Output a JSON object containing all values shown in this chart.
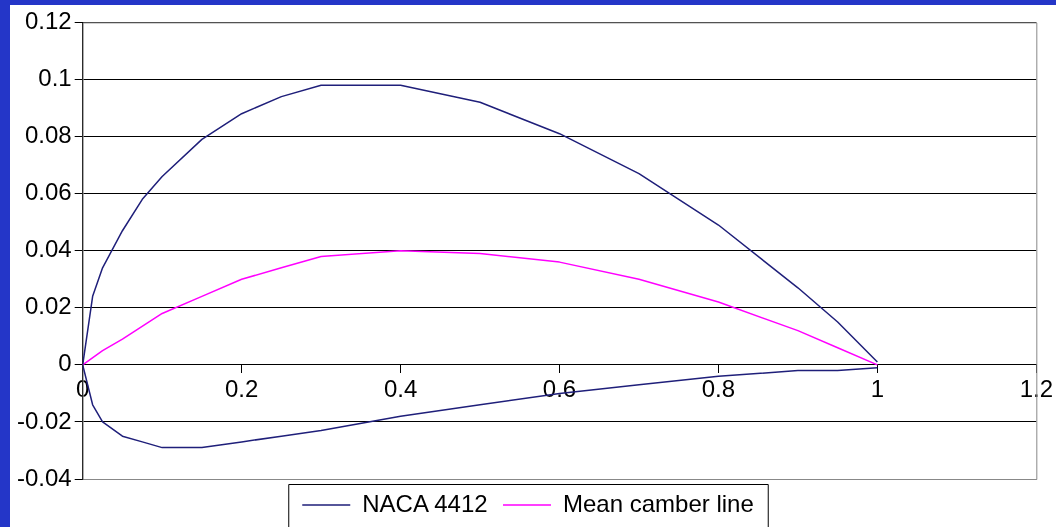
{
  "chart_data": {
    "type": "line",
    "marker": "none",
    "grid": "y",
    "legend": "bottom",
    "xlim": [
      0,
      1.2
    ],
    "xticks": [
      0,
      0.2,
      0.4,
      0.6,
      0.8,
      1,
      1.2
    ],
    "ylim": [
      -0.04,
      0.12
    ],
    "yticks": [
      -0.04,
      -0.02,
      0,
      0.02,
      0.04,
      0.06,
      0.08,
      0.1,
      0.12
    ],
    "series": [
      {
        "name": "NACA 4412",
        "color": "#1f1f7a",
        "x": [
          1,
          0.95,
          0.9,
          0.8,
          0.7,
          0.6,
          0.5,
          0.4,
          0.3,
          0.25,
          0.2,
          0.15,
          0.1,
          0.075,
          0.05,
          0.025,
          0.0125,
          0,
          0.0125,
          0.025,
          0.05,
          0.075,
          0.1,
          0.15,
          0.2,
          0.25,
          0.3,
          0.4,
          0.5,
          0.6,
          0.7,
          0.8,
          0.9,
          0.95,
          1
        ],
        "values": [
          0.001,
          0.015,
          0.027,
          0.049,
          0.067,
          0.081,
          0.092,
          0.098,
          0.098,
          0.094,
          0.088,
          0.079,
          0.066,
          0.058,
          0.047,
          0.034,
          0.024,
          0,
          -0.014,
          -0.02,
          -0.025,
          -0.027,
          -0.029,
          -0.029,
          -0.027,
          -0.025,
          -0.023,
          -0.018,
          -0.014,
          -0.01,
          -0.007,
          -0.004,
          -0.002,
          -0.002,
          -0.001
        ]
      },
      {
        "name": "Mean camber line",
        "color": "#ff00ff",
        "x": [
          0,
          0.025,
          0.05,
          0.1,
          0.15,
          0.2,
          0.25,
          0.3,
          0.4,
          0.5,
          0.6,
          0.7,
          0.8,
          0.9,
          0.95,
          1
        ],
        "values": [
          0,
          0.005,
          0.009,
          0.018,
          0.024,
          0.03,
          0.034,
          0.038,
          0.04,
          0.039,
          0.036,
          0.03,
          0.022,
          0.012,
          0.006,
          0
        ]
      }
    ]
  }
}
